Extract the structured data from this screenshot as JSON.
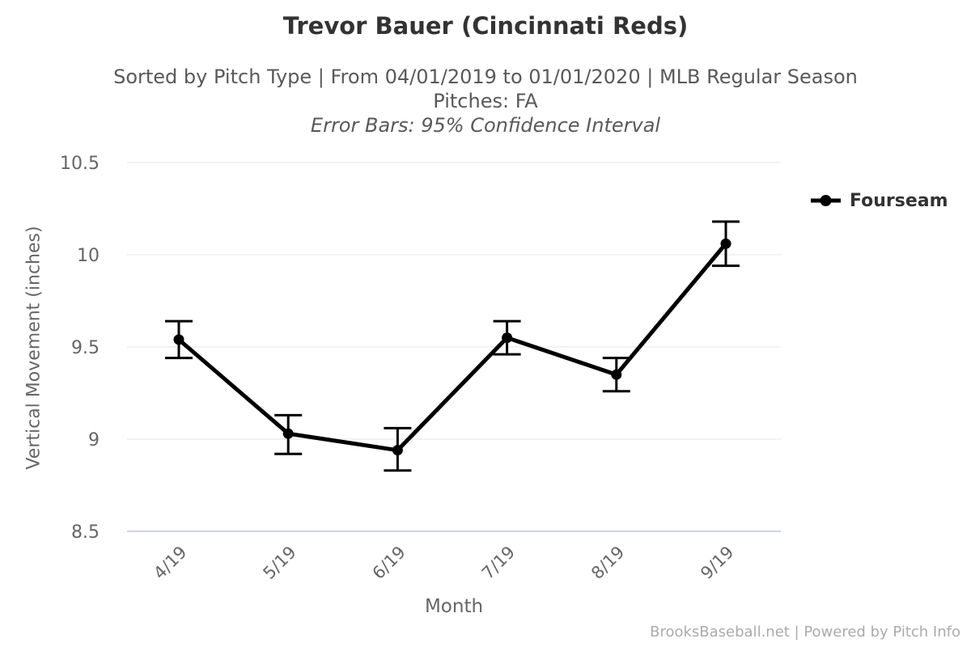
{
  "header": {
    "title": "Trevor Bauer (Cincinnati Reds)",
    "subtitle_line1": "Sorted by Pitch Type | From 04/01/2019 to 01/01/2020 | MLB Regular Season",
    "subtitle_line2": "Pitches: FA",
    "subtitle_line3": "Error Bars: 95% Confidence Interval"
  },
  "legend": {
    "position": "right",
    "items": [
      {
        "label": "Fourseam",
        "color": "#000000"
      }
    ]
  },
  "watermark": {
    "text": "BrooksBaseball.net | Powered by Pitch Info"
  },
  "chart_data": {
    "type": "line",
    "title": "Trevor Bauer (Cincinnati Reds)",
    "xlabel": "Month",
    "ylabel": "Vertical Movement (inches)",
    "categories": [
      "4/19",
      "5/19",
      "6/19",
      "7/19",
      "8/19",
      "9/19"
    ],
    "series": [
      {
        "name": "Fourseam",
        "color": "#000000",
        "values": [
          9.54,
          9.03,
          8.94,
          9.55,
          9.35,
          10.06
        ],
        "error_low": [
          9.44,
          8.92,
          8.83,
          9.46,
          9.26,
          9.94
        ],
        "error_high": [
          9.64,
          9.13,
          9.06,
          9.64,
          9.44,
          10.18
        ]
      }
    ],
    "error_bars_note": "95% Confidence Interval",
    "ylim": [
      8.5,
      10.5
    ],
    "yticks": [
      8.5,
      9,
      9.5,
      10,
      10.5
    ],
    "grid": true,
    "legend_position": "right",
    "colors": {
      "series": "#000000",
      "grid": "#e6e6e6",
      "axis_line": "#ccd6eb",
      "tick_text": "#666666",
      "title": "#333333",
      "subtitle": "#595959",
      "watermark": "#ababab"
    }
  }
}
